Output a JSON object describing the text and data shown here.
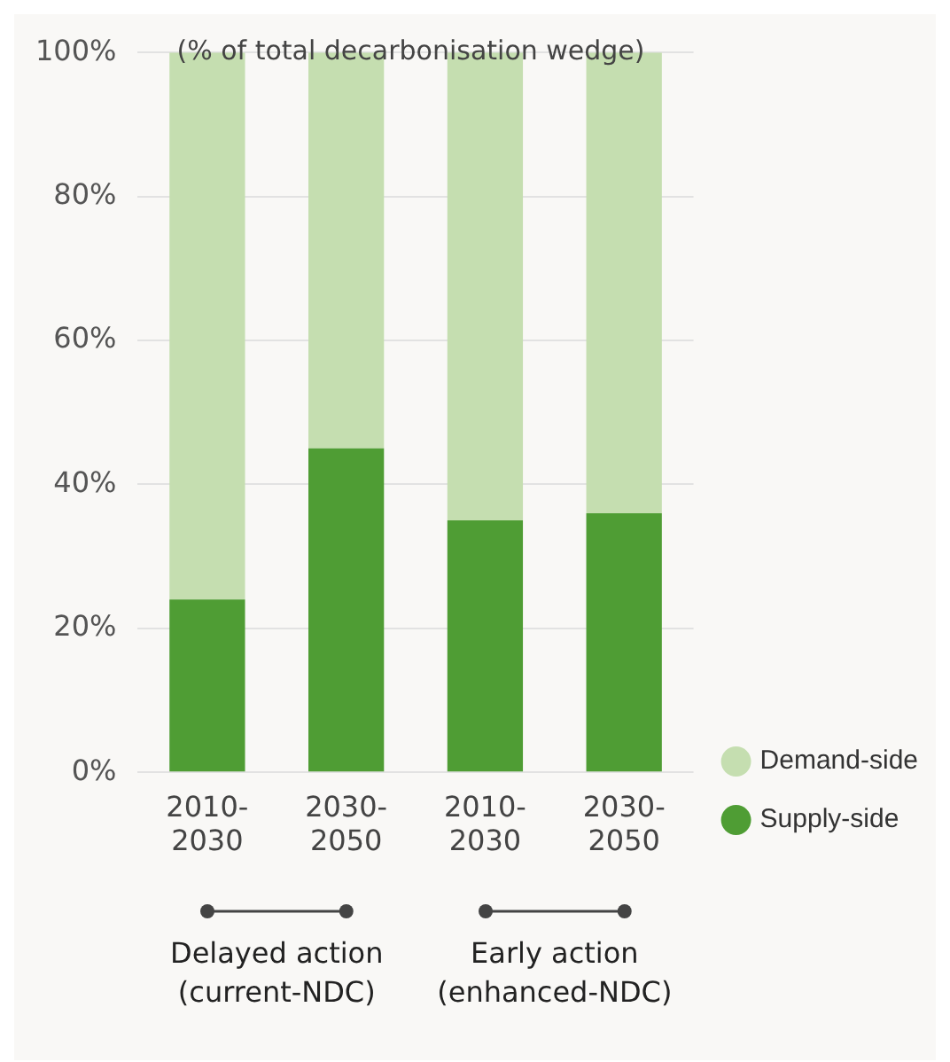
{
  "chart_data": {
    "type": "bar",
    "title": "(% of total decarbonisation wedge)",
    "categories": [
      "2010-2030",
      "2030-2050",
      "2010-2030",
      "2030-2050"
    ],
    "series": [
      {
        "name": "Supply-side",
        "color": "#4f9d34",
        "values": [
          24,
          45,
          35,
          36
        ]
      },
      {
        "name": "Demand-side",
        "color": "#c5deb0",
        "values": [
          76,
          55,
          65,
          64
        ]
      }
    ],
    "stacked": true,
    "ylim": [
      0,
      100
    ],
    "yticks": [
      {
        "value": 0,
        "label": "0%"
      },
      {
        "value": 20,
        "label": "20%"
      },
      {
        "value": 40,
        "label": "40%"
      },
      {
        "value": 60,
        "label": "60%"
      },
      {
        "value": 80,
        "label": "80%"
      },
      {
        "value": 100,
        "label": "100%"
      }
    ],
    "grid": "y",
    "legend": "bottom right",
    "annotations": [
      "Delayed action (current-NDC)",
      "Early action (enhanced-NDC)"
    ]
  }
}
